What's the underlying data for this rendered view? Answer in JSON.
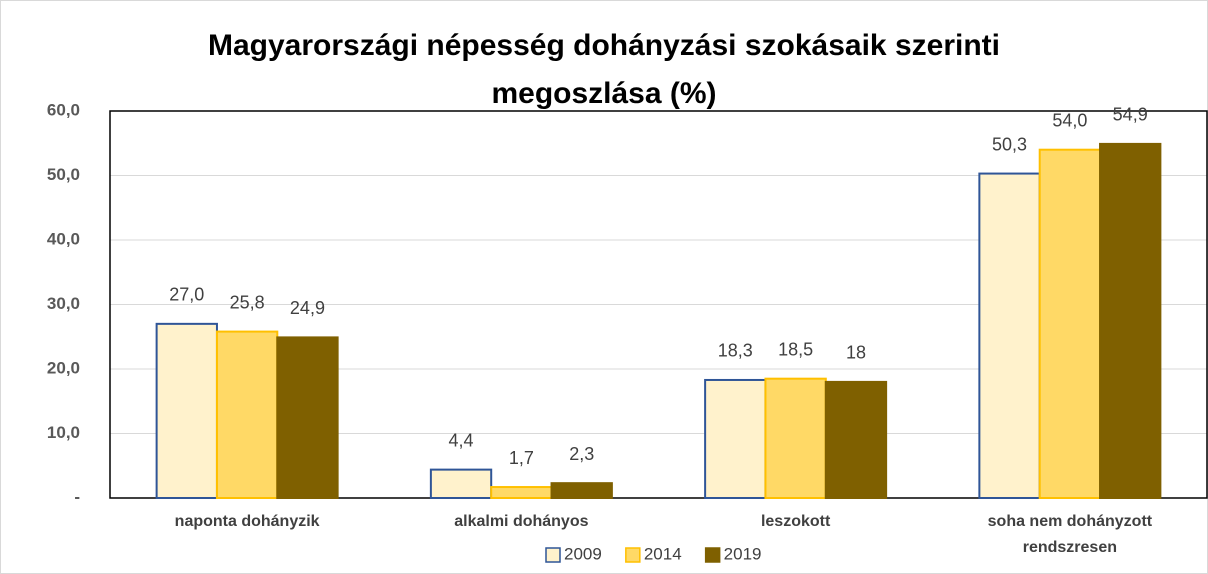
{
  "chart_data": {
    "type": "bar",
    "title": "Magyarországi népesség dohányzási szokásaik szerinti megoszlása (%)",
    "categories": [
      "naponta dohányzik",
      "alkalmi dohányos",
      "leszokott",
      "soha nem dohányzott rendszresen"
    ],
    "series": [
      {
        "name": "2009",
        "color": "#fff2cc",
        "stroke": "#2f5597",
        "values": [
          27.0,
          4.4,
          18.3,
          50.3
        ],
        "value_labels": [
          "27,0",
          "4,4",
          "18,3",
          "50,3"
        ]
      },
      {
        "name": "2014",
        "color": "#ffd966",
        "stroke": "#ffc000",
        "values": [
          25.8,
          1.7,
          18.5,
          54.0
        ],
        "value_labels": [
          "25,8",
          "1,7",
          "18,5",
          "54,0"
        ]
      },
      {
        "name": "2019",
        "color": "#7f6000",
        "stroke": "#7f6000",
        "values": [
          24.9,
          2.3,
          18,
          54.9
        ],
        "value_labels": [
          "24,9",
          "2,3",
          "18",
          "54,9"
        ]
      }
    ],
    "ylim": [
      0,
      60
    ],
    "yticks": [
      {
        "value": 0,
        "label": "-"
      },
      {
        "value": 10,
        "label": "10,0"
      },
      {
        "value": 20,
        "label": "20,0"
      },
      {
        "value": 30,
        "label": "30,0"
      },
      {
        "value": 40,
        "label": "40,0"
      },
      {
        "value": 50,
        "label": "50,0"
      },
      {
        "value": 60,
        "label": "60,0"
      }
    ],
    "grid": true,
    "legend": "bottom"
  }
}
